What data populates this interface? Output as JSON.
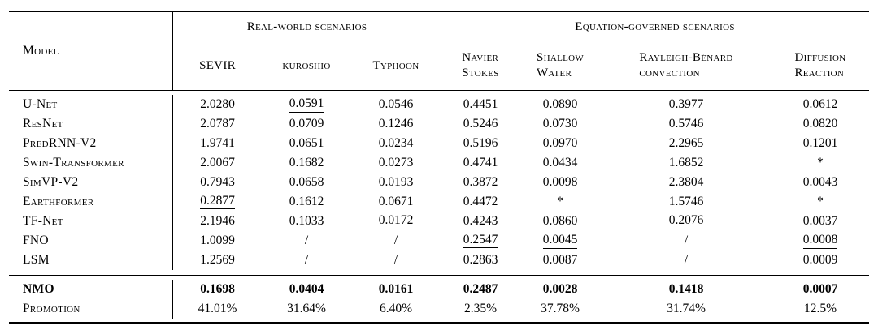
{
  "table": {
    "model_header": "Model",
    "groups": [
      {
        "label": "Real-world scenarios",
        "columns": [
          "SEVIR",
          "kuroshio",
          "Typhoon"
        ]
      },
      {
        "label": "Equation-governed scenarios",
        "columns": [
          {
            "line1": "Navier",
            "line2": "Stokes"
          },
          {
            "line1": "Shallow",
            "line2": "Water"
          },
          {
            "line1": "Rayleigh-Bénard",
            "line2": "convection"
          },
          {
            "line1": "Diffusion",
            "line2": "Reaction"
          }
        ]
      }
    ],
    "rows": [
      {
        "model": "U-Net",
        "values": [
          "2.0280",
          "0.0591",
          "0.0546",
          "0.4451",
          "0.0890",
          "0.3977",
          "0.0612"
        ],
        "underline": [
          1
        ]
      },
      {
        "model": "ResNet",
        "values": [
          "2.0787",
          "0.0709",
          "0.1246",
          "0.5246",
          "0.0730",
          "0.5746",
          "0.0820"
        ],
        "underline": []
      },
      {
        "model": "PredRNN-V2",
        "values": [
          "1.9741",
          "0.0651",
          "0.0234",
          "0.5196",
          "0.0970",
          "2.2965",
          "0.1201"
        ],
        "underline": []
      },
      {
        "model": "Swin-Transformer",
        "values": [
          "2.0067",
          "0.1682",
          "0.0273",
          "0.4741",
          "0.0434",
          "1.6852",
          "*"
        ],
        "underline": []
      },
      {
        "model": "SimVP-V2",
        "values": [
          "0.7943",
          "0.0658",
          "0.0193",
          "0.3872",
          "0.0098",
          "2.3804",
          "0.0043"
        ],
        "underline": []
      },
      {
        "model": "Earthformer",
        "values": [
          "0.2877",
          "0.1612",
          "0.0671",
          "0.4472",
          "*",
          "1.5746",
          "*"
        ],
        "underline": [
          0
        ]
      },
      {
        "model": "TF-Net",
        "values": [
          "2.1946",
          "0.1033",
          "0.0172",
          "0.4243",
          "0.0860",
          "0.2076",
          "0.0037"
        ],
        "underline": [
          2,
          5
        ]
      },
      {
        "model": "FNO",
        "values": [
          "1.0099",
          "/",
          "/",
          "0.2547",
          "0.0045",
          "/",
          "0.0008"
        ],
        "underline": [
          3,
          4,
          6
        ]
      },
      {
        "model": "LSM",
        "values": [
          "1.2569",
          "/",
          "/",
          "0.2863",
          "0.0087",
          "/",
          "0.0009"
        ],
        "underline": []
      }
    ],
    "summary": [
      {
        "model": "NMO",
        "values": [
          "0.1698",
          "0.0404",
          "0.0161",
          "0.2487",
          "0.0028",
          "0.1418",
          "0.0007"
        ],
        "underline": [],
        "bold": true
      },
      {
        "model": "Promotion",
        "values": [
          "41.01%",
          "31.64%",
          "6.40%",
          "2.35%",
          "37.78%",
          "31.74%",
          "12.5%"
        ],
        "underline": [],
        "bold": false
      }
    ]
  }
}
